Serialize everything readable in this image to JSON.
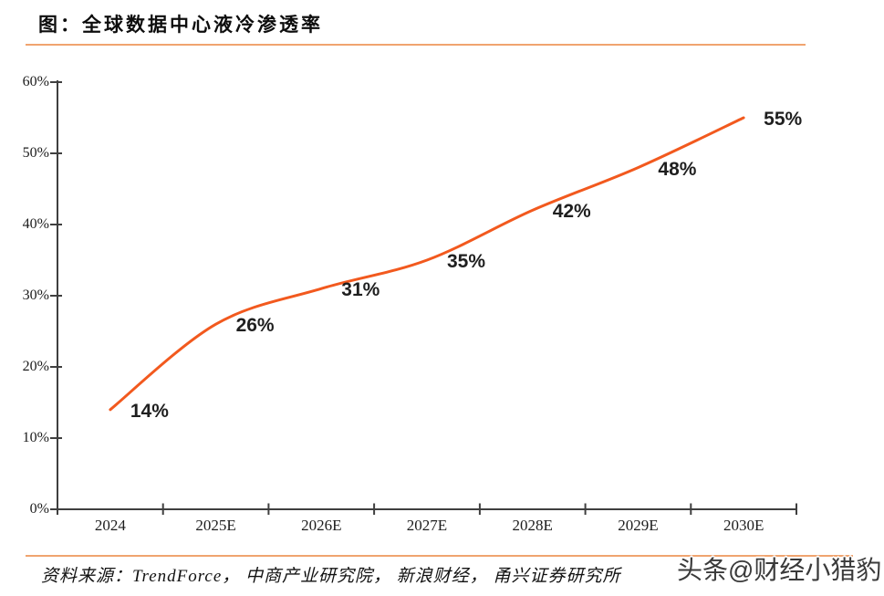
{
  "header": {
    "title": "图：全球数据中心液冷渗透率"
  },
  "footer": {
    "source": "资料来源：TrendForce，  中商产业研究院，  新浪财经，  甬兴证券研究所",
    "watermark": "头条@财经小猎豹"
  },
  "colors": {
    "series_line": "#F2591E",
    "separator_line": "#F0A46F",
    "axis": "#3f3f3f",
    "label_text": "#1f1f1f"
  },
  "chart_data": {
    "type": "line",
    "title": "图：全球数据中心液冷渗透率",
    "categories": [
      "2024",
      "2025E",
      "2026E",
      "2027E",
      "2028E",
      "2029E",
      "2030E"
    ],
    "values": [
      14,
      26,
      31,
      35,
      42,
      48,
      55
    ],
    "data_labels": [
      "14%",
      "26%",
      "31%",
      "35%",
      "42%",
      "48%",
      "55%"
    ],
    "xlabel": "",
    "ylabel": "",
    "ylim": [
      0,
      60
    ],
    "yticks": [
      0,
      10,
      20,
      30,
      40,
      50,
      60
    ],
    "ytick_labels": [
      "0%",
      "10%",
      "20%",
      "30%",
      "40%",
      "50%",
      "60%"
    ],
    "grid": false,
    "legend": "none",
    "smooth": true,
    "line_color": "#F2591E"
  }
}
